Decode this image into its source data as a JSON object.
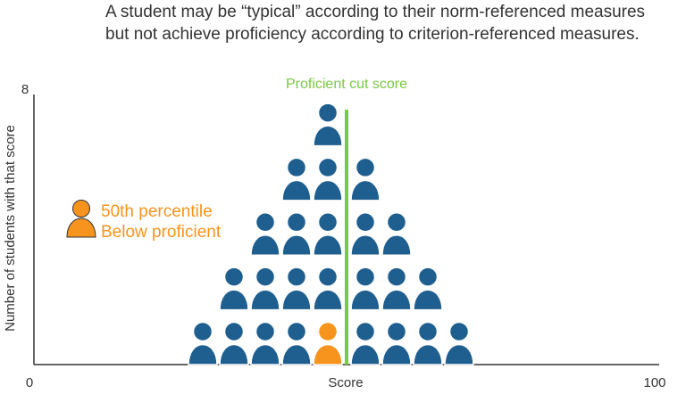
{
  "caption": {
    "line1": "A student may be “typical” according to their norm-referenced measures",
    "line2": "but not achieve proficiency according to criterion-referenced measures."
  },
  "chart_data": {
    "type": "scatter",
    "title": "",
    "xlabel": "Score",
    "ylabel": "Number of students with that score",
    "xlim": [
      0,
      100
    ],
    "ylim": [
      0,
      8
    ],
    "x_tick_labels": [
      "0",
      "Score",
      "100"
    ],
    "y_tick_labels": [
      "8"
    ],
    "grid": false,
    "reference_line": {
      "label": "Proficient cut score",
      "x": 50,
      "color": "#7ac943"
    },
    "legend": {
      "placement": "left",
      "entries": [
        "50th percentile",
        "Below proficient"
      ],
      "color": "#f7941d"
    },
    "score_columns": [
      {
        "x": 27,
        "count": 1
      },
      {
        "x": 32,
        "count": 2
      },
      {
        "x": 37,
        "count": 3
      },
      {
        "x": 42,
        "count": 4
      },
      {
        "x": 47,
        "count": 5,
        "highlight_row": 1
      },
      {
        "x": 53,
        "count": 4
      },
      {
        "x": 58,
        "count": 3
      },
      {
        "x": 63,
        "count": 2
      },
      {
        "x": 68,
        "count": 1
      }
    ],
    "colors": {
      "student": "#1f5f8f",
      "highlight": "#f7941d",
      "axis": "#333333"
    }
  }
}
